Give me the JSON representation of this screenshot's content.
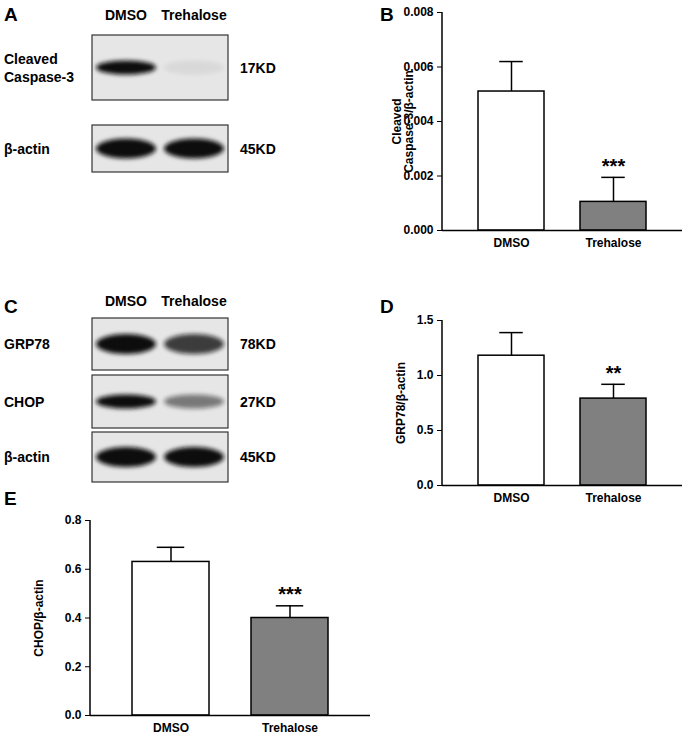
{
  "blots": [
    {
      "panel": "A",
      "lanes": [
        "DMSO",
        "Trehalose"
      ],
      "rows": [
        {
          "label": "Cleaved Caspase-3",
          "size": "17KD"
        },
        {
          "label": "β-actin",
          "size": "45KD"
        }
      ]
    },
    {
      "panel": "C",
      "lanes": [
        "DMSO",
        "Trehalose"
      ],
      "rows": [
        {
          "label": "GRP78",
          "size": "78KD"
        },
        {
          "label": "CHOP",
          "size": "27KD"
        },
        {
          "label": "β-actin",
          "size": "45KD"
        }
      ]
    }
  ],
  "chart_data": [
    {
      "panel": "B",
      "type": "bar",
      "categories": [
        "DMSO",
        "Trehalose"
      ],
      "values": [
        0.0051,
        0.00105
      ],
      "errors": [
        0.0011,
        0.0009
      ],
      "annotations": [
        null,
        "***"
      ],
      "colors": [
        "#ffffff",
        "#808080"
      ],
      "y_label": "Cleaved\nCaspase-3/β-actin",
      "ylim": [
        0,
        0.008
      ],
      "yticks": [
        {
          "value": 0,
          "label": "0.000"
        },
        {
          "value": 0.002,
          "label": "0.002"
        },
        {
          "value": 0.004,
          "label": "0.004"
        },
        {
          "value": 0.006,
          "label": "0.006"
        },
        {
          "value": 0.008,
          "label": "0.008"
        }
      ]
    },
    {
      "panel": "D",
      "type": "bar",
      "categories": [
        "DMSO",
        "Trehalose"
      ],
      "values": [
        1.18,
        0.79
      ],
      "errors": [
        0.21,
        0.13
      ],
      "annotations": [
        null,
        "**"
      ],
      "colors": [
        "#ffffff",
        "#808080"
      ],
      "y_label": "GRP78/β-actin",
      "ylim": [
        0,
        1.5
      ],
      "yticks": [
        {
          "value": 0,
          "label": "0.0"
        },
        0.5,
        {
          "value": 1,
          "label": "1.0"
        },
        1.5
      ]
    },
    {
      "panel": "E",
      "type": "bar",
      "categories": [
        "DMSO",
        "Trehalose"
      ],
      "values": [
        0.63,
        0.4
      ],
      "errors": [
        0.06,
        0.05
      ],
      "annotations": [
        null,
        "***"
      ],
      "colors": [
        "#ffffff",
        "#808080"
      ],
      "y_label": "CHOP/β-actin",
      "ylim": [
        0,
        0.8
      ],
      "yticks": [
        {
          "value": 0,
          "label": "0.0"
        },
        0.2,
        0.4,
        0.6,
        0.8
      ]
    }
  ]
}
